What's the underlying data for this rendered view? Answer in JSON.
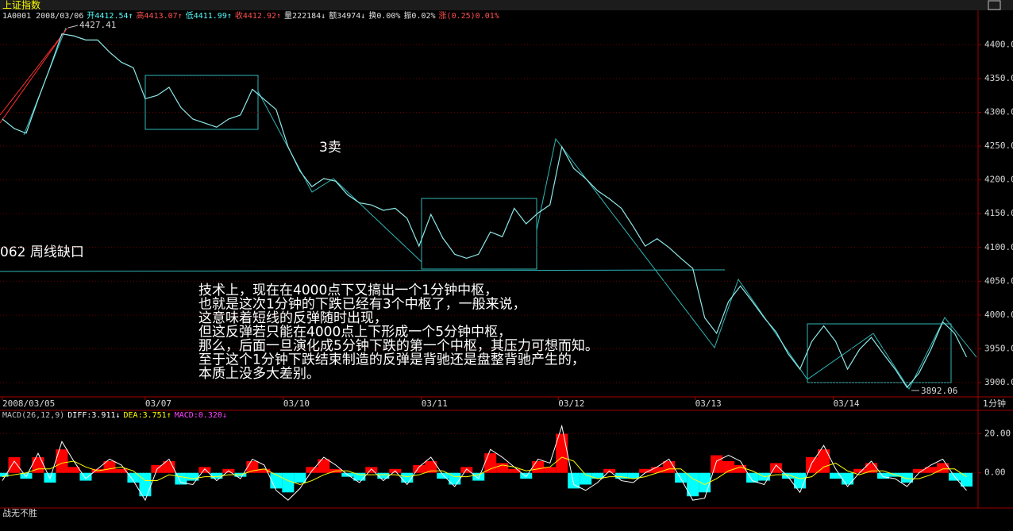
{
  "chart_data": [
    {
      "type": "line",
      "title": "上证指数",
      "header": [
        {
          "text": "1A0001 2008/03/06",
          "color": "#e0e0e0"
        },
        {
          "text": "开4412.54↑",
          "color": "#54fcfc"
        },
        {
          "text": "高4413.07↑",
          "color": "#ff5050"
        },
        {
          "text": "低4411.99↑",
          "color": "#54fcfc"
        },
        {
          "text": "收4412.92↑",
          "color": "#ff5050"
        },
        {
          "text": "量222184↓",
          "color": "#e0e0e0"
        },
        {
          "text": "额34974↓",
          "color": "#e0e0e0"
        },
        {
          "text": "换0.00%",
          "color": "#e0e0e0"
        },
        {
          "text": "振0.02%",
          "color": "#e0e0e0"
        },
        {
          "text": "涨(0.25)0.01%",
          "color": "#ff5050"
        }
      ],
      "x": [
        0,
        1,
        2,
        3,
        4,
        5,
        6,
        7,
        8,
        9,
        10,
        11,
        12,
        13,
        14,
        15,
        16,
        17,
        18,
        19,
        20,
        21,
        22,
        23,
        24,
        25,
        26,
        27,
        28,
        29,
        30,
        31,
        32,
        33,
        34,
        35,
        36,
        37,
        38,
        39,
        40,
        41,
        42,
        43,
        44,
        45,
        46,
        47,
        48,
        49,
        50,
        51,
        52,
        53,
        54,
        55,
        56,
        57,
        58,
        59,
        60,
        61,
        62,
        63,
        64,
        65,
        66,
        67,
        68,
        69,
        70,
        71,
        72,
        73,
        74,
        75,
        76,
        77,
        78,
        79,
        80,
        81
      ],
      "series": [
        {
          "color": "#8fe8e8",
          "values": [
            4290,
            4276,
            4269,
            4319,
            4366,
            4416,
            4413,
            4407,
            4407,
            4389,
            4374,
            4366,
            4320,
            4325,
            4337,
            4307,
            4290,
            4284,
            4278,
            4290,
            4296,
            4334,
            4319,
            4304,
            4249,
            4213,
            4190,
            4202,
            4198,
            4178,
            4166,
            4163,
            4155,
            4158,
            4143,
            4102,
            4149,
            4114,
            4090,
            4084,
            4090,
            4123,
            4116,
            4158,
            4135,
            4151,
            4163,
            4249,
            4217,
            4202,
            4184,
            4172,
            4158,
            4131,
            4102,
            4113,
            4100,
            4084,
            4069,
            3996,
            3973,
            4020,
            4043,
            4020,
            3996,
            3975,
            3943,
            3920,
            3961,
            3984,
            3961,
            3920,
            3949,
            3967,
            3943,
            3920,
            3893,
            3914,
            3949,
            3990,
            3973,
            3938
          ]
        }
      ],
      "xlim": [
        0,
        81.7
      ],
      "xticks": [
        {
          "value": 0,
          "label": "2008/03/05"
        },
        {
          "value": 12,
          "label": "03/07"
        },
        {
          "value": 23.6,
          "label": "03/10"
        },
        {
          "value": 35.2,
          "label": "03/11"
        },
        {
          "value": 46.7,
          "label": "03/12"
        },
        {
          "value": 58.2,
          "label": "03/13"
        },
        {
          "value": 69.8,
          "label": "03/14"
        }
      ],
      "period": "1分钟",
      "ylim": [
        3879,
        4445
      ],
      "yticks": [
        {
          "value": 3900,
          "label": "3900.00"
        },
        {
          "value": 3950,
          "label": "3950.00"
        },
        {
          "value": 4000,
          "label": "4000.00"
        },
        {
          "value": 4050,
          "label": "4050.00"
        },
        {
          "value": 4100,
          "label": "4100.00"
        },
        {
          "value": 4150,
          "label": "4150.00"
        },
        {
          "value": 4200,
          "label": "4200.00"
        },
        {
          "value": 4250,
          "label": "4250.00"
        },
        {
          "value": 4300,
          "label": "4300.00"
        },
        {
          "value": 4350,
          "label": "4350.00"
        },
        {
          "value": 4400,
          "label": "4400.00"
        }
      ],
      "grid": true,
      "annotations": [
        "4427.41",
        "3卖",
        "062  周线缺口",
        "3892.06"
      ],
      "note": [
        "技术上，现在在4000点下又搞出一个1分钟中枢，",
        "也就是这次1分钟的下跌已经有3个中枢了，一般来说，",
        "这意味着短线的反弹随时出现，",
        "但这反弹若只能在4000点上下形成一个5分钟中枢，",
        "那么，后面一旦演化成5分钟下跌的第一个中枢，其压力可想而知。",
        "至于这个1分钟下跌结束制造的反弹是背驰还是盘整背驰产生的，",
        "本质上没多大差别。"
      ]
    },
    {
      "type": "macd",
      "header": [
        {
          "text": "MACD(26,12,9)",
          "color": "#c0c0c0"
        },
        {
          "text": "DIFF:3.911↓",
          "color": "#ffffff"
        },
        {
          "text": "DEA:3.751↑",
          "color": "#ffff00"
        },
        {
          "text": "MACD:0.320↓",
          "color": "#ff40ff"
        }
      ],
      "x": [
        0,
        1,
        2,
        3,
        4,
        5,
        6,
        7,
        8,
        9,
        10,
        11,
        12,
        13,
        14,
        15,
        16,
        17,
        18,
        19,
        20,
        21,
        22,
        23,
        24,
        25,
        26,
        27,
        28,
        29,
        30,
        31,
        32,
        33,
        34,
        35,
        36,
        37,
        38,
        39,
        40,
        41,
        42,
        43,
        44,
        45,
        46,
        47,
        48,
        49,
        50,
        51,
        52,
        53,
        54,
        55,
        56,
        57,
        58,
        59,
        60,
        61,
        62,
        63,
        64,
        65,
        66,
        67,
        68,
        69,
        70,
        71,
        72,
        73,
        74,
        75,
        76,
        77,
        78,
        79,
        80,
        81
      ],
      "series": [
        {
          "up_color": "#ff0000",
          "down_color": "#00ffff",
          "values": [
            -2,
            8,
            -3,
            8,
            -5,
            12,
            3,
            -4,
            2,
            6,
            2,
            -5,
            -12,
            4,
            6,
            -6,
            -4,
            3,
            -3,
            2,
            -2,
            6,
            2,
            -8,
            -10,
            -5,
            3,
            7,
            2,
            -2,
            -4,
            3,
            -3,
            2,
            -5,
            4,
            6,
            -3,
            -6,
            3,
            -4,
            10,
            5,
            2,
            -3,
            6,
            3,
            20,
            -8,
            -6,
            -3,
            2,
            -3,
            -3,
            2,
            3,
            6,
            -5,
            -12,
            -10,
            9,
            6,
            4,
            -5,
            -4,
            5,
            -3,
            -8,
            8,
            12,
            -3,
            -6,
            2,
            5,
            -3,
            -2,
            -5,
            2,
            3,
            5,
            -4,
            -7
          ]
        },
        {
          "color": "#ffffff",
          "values": [
            -4,
            6,
            -2,
            10,
            -3,
            16,
            6,
            -3,
            2,
            7,
            4,
            -4,
            -14,
            2,
            7,
            -5,
            -6,
            2,
            -4,
            1,
            -3,
            7,
            4,
            -9,
            -14,
            -8,
            1,
            8,
            4,
            -1,
            -5,
            2,
            -4,
            1,
            -6,
            3,
            8,
            -1,
            -7,
            2,
            -3,
            12,
            8,
            3,
            -2,
            7,
            5,
            24,
            -6,
            -9,
            -5,
            1,
            -4,
            -5,
            0,
            3,
            7,
            -3,
            -14,
            -13,
            6,
            9,
            6,
            -4,
            -6,
            4,
            -2,
            -10,
            5,
            14,
            2,
            -7,
            0,
            6,
            -2,
            -3,
            -7,
            0,
            4,
            7,
            -2,
            -9
          ]
        },
        {
          "color": "#ffff00",
          "values": [
            -2,
            -1,
            0,
            2,
            2,
            5,
            6,
            3,
            1,
            2,
            3,
            1,
            -4,
            -4,
            -1,
            -2,
            -3,
            -2,
            -2,
            -1,
            -1,
            1,
            2,
            -1,
            -4,
            -6,
            -4,
            -1,
            1,
            1,
            -1,
            -1,
            -1,
            -1,
            -2,
            -1,
            1,
            1,
            -2,
            -2,
            -1,
            2,
            4,
            3,
            1,
            2,
            3,
            8,
            6,
            -1,
            -3,
            -2,
            -2,
            -3,
            -2,
            0,
            2,
            2,
            -3,
            -6,
            -3,
            1,
            3,
            1,
            -2,
            -1,
            -1,
            -3,
            -2,
            3,
            5,
            1,
            -1,
            1,
            1,
            -1,
            -3,
            -3,
            -1,
            2,
            2,
            -2
          ]
        }
      ],
      "xlim": [
        0,
        81.7
      ],
      "ylim": [
        -18,
        32
      ],
      "yticks": [
        {
          "value": 0,
          "label": "0.00"
        },
        {
          "value": 20,
          "label": "20.00"
        }
      ],
      "grid": true
    }
  ],
  "footer": "战无不胜"
}
